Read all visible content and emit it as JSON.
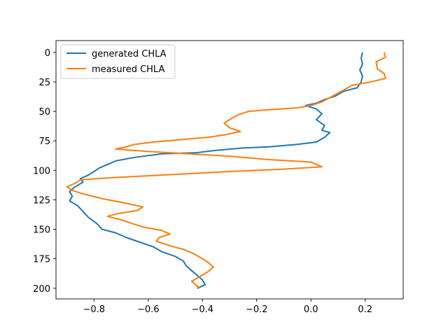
{
  "chart_data": {
    "type": "line",
    "title": "",
    "xlabel": "",
    "ylabel": "",
    "xlim": [
      -0.94,
      0.34
    ],
    "ylim": [
      209,
      -10
    ],
    "y_inverted": true,
    "xticks": [
      -0.8,
      -0.6,
      -0.4,
      -0.2,
      0.0,
      0.2
    ],
    "xtick_labels": [
      "−0.8",
      "−0.6",
      "−0.4",
      "−0.2",
      "0.0",
      "0.2"
    ],
    "yticks": [
      0,
      25,
      50,
      75,
      100,
      125,
      150,
      175,
      200
    ],
    "ytick_labels": [
      "0",
      "25",
      "50",
      "75",
      "100",
      "125",
      "150",
      "175",
      "200"
    ],
    "legend_position": "top-left",
    "grid": false,
    "series": [
      {
        "name": "generated CHLA",
        "color": "#1f77b4",
        "points": [
          [
            0.19,
            0
          ],
          [
            0.185,
            5
          ],
          [
            0.19,
            10
          ],
          [
            0.18,
            15
          ],
          [
            0.19,
            20
          ],
          [
            0.185,
            25
          ],
          [
            0.17,
            30
          ],
          [
            0.12,
            33
          ],
          [
            0.09,
            37
          ],
          [
            0.05,
            40
          ],
          [
            0.02,
            43
          ],
          [
            -0.02,
            45
          ],
          [
            0.02,
            48
          ],
          [
            0.04,
            52
          ],
          [
            0.02,
            57
          ],
          [
            0.05,
            62
          ],
          [
            0.04,
            66
          ],
          [
            0.07,
            68
          ],
          [
            0.05,
            72
          ],
          [
            0.02,
            76
          ],
          [
            -0.05,
            78
          ],
          [
            -0.15,
            80
          ],
          [
            -0.25,
            81
          ],
          [
            -0.35,
            83
          ],
          [
            -0.42,
            85
          ],
          [
            -0.55,
            86
          ],
          [
            -0.65,
            89
          ],
          [
            -0.72,
            92
          ],
          [
            -0.75,
            95
          ],
          [
            -0.78,
            98
          ],
          [
            -0.8,
            101
          ],
          [
            -0.82,
            104
          ],
          [
            -0.85,
            107
          ],
          [
            -0.84,
            110
          ],
          [
            -0.87,
            114
          ],
          [
            -0.89,
            118
          ],
          [
            -0.88,
            122
          ],
          [
            -0.89,
            126
          ],
          [
            -0.86,
            130
          ],
          [
            -0.84,
            135
          ],
          [
            -0.82,
            140
          ],
          [
            -0.79,
            145
          ],
          [
            -0.77,
            150
          ],
          [
            -0.72,
            153
          ],
          [
            -0.68,
            157
          ],
          [
            -0.63,
            161
          ],
          [
            -0.58,
            165
          ],
          [
            -0.55,
            169
          ],
          [
            -0.5,
            173
          ],
          [
            -0.47,
            177
          ],
          [
            -0.46,
            181
          ],
          [
            -0.44,
            185
          ],
          [
            -0.42,
            189
          ],
          [
            -0.4,
            193
          ],
          [
            -0.39,
            197
          ],
          [
            -0.42,
            200
          ]
        ]
      },
      {
        "name": "measured CHLA",
        "color": "#ff7f0e",
        "points": [
          [
            0.27,
            0
          ],
          [
            0.275,
            4
          ],
          [
            0.24,
            8
          ],
          [
            0.245,
            14
          ],
          [
            0.27,
            18
          ],
          [
            0.275,
            22
          ],
          [
            0.22,
            25
          ],
          [
            0.15,
            28
          ],
          [
            0.12,
            32
          ],
          [
            0.08,
            37
          ],
          [
            0.04,
            42
          ],
          [
            0.0,
            45
          ],
          [
            -0.05,
            47
          ],
          [
            -0.18,
            49
          ],
          [
            -0.23,
            50
          ],
          [
            -0.27,
            53
          ],
          [
            -0.3,
            57
          ],
          [
            -0.32,
            60
          ],
          [
            -0.3,
            64
          ],
          [
            -0.26,
            67
          ],
          [
            -0.32,
            70
          ],
          [
            -0.38,
            72
          ],
          [
            -0.48,
            74
          ],
          [
            -0.58,
            76
          ],
          [
            -0.65,
            78
          ],
          [
            -0.68,
            80
          ],
          [
            -0.72,
            82
          ],
          [
            -0.6,
            84
          ],
          [
            -0.45,
            86
          ],
          [
            -0.3,
            88
          ],
          [
            -0.15,
            91
          ],
          [
            0.0,
            93
          ],
          [
            0.04,
            97
          ],
          [
            -0.1,
            99
          ],
          [
            -0.3,
            101
          ],
          [
            -0.55,
            104
          ],
          [
            -0.72,
            106
          ],
          [
            -0.85,
            108
          ],
          [
            -0.87,
            111
          ],
          [
            -0.9,
            114
          ],
          [
            -0.88,
            117
          ],
          [
            -0.84,
            120
          ],
          [
            -0.77,
            124
          ],
          [
            -0.68,
            128
          ],
          [
            -0.62,
            131
          ],
          [
            -0.64,
            134
          ],
          [
            -0.72,
            137
          ],
          [
            -0.75,
            139
          ],
          [
            -0.7,
            142
          ],
          [
            -0.66,
            145
          ],
          [
            -0.62,
            148
          ],
          [
            -0.55,
            151
          ],
          [
            -0.52,
            154
          ],
          [
            -0.56,
            157
          ],
          [
            -0.57,
            160
          ],
          [
            -0.52,
            164
          ],
          [
            -0.47,
            167
          ],
          [
            -0.43,
            171
          ],
          [
            -0.4,
            175
          ],
          [
            -0.38,
            178
          ],
          [
            -0.36,
            182
          ],
          [
            -0.38,
            186
          ],
          [
            -0.41,
            190
          ],
          [
            -0.44,
            194
          ],
          [
            -0.42,
            198
          ],
          [
            -0.41,
            200
          ]
        ]
      }
    ]
  }
}
